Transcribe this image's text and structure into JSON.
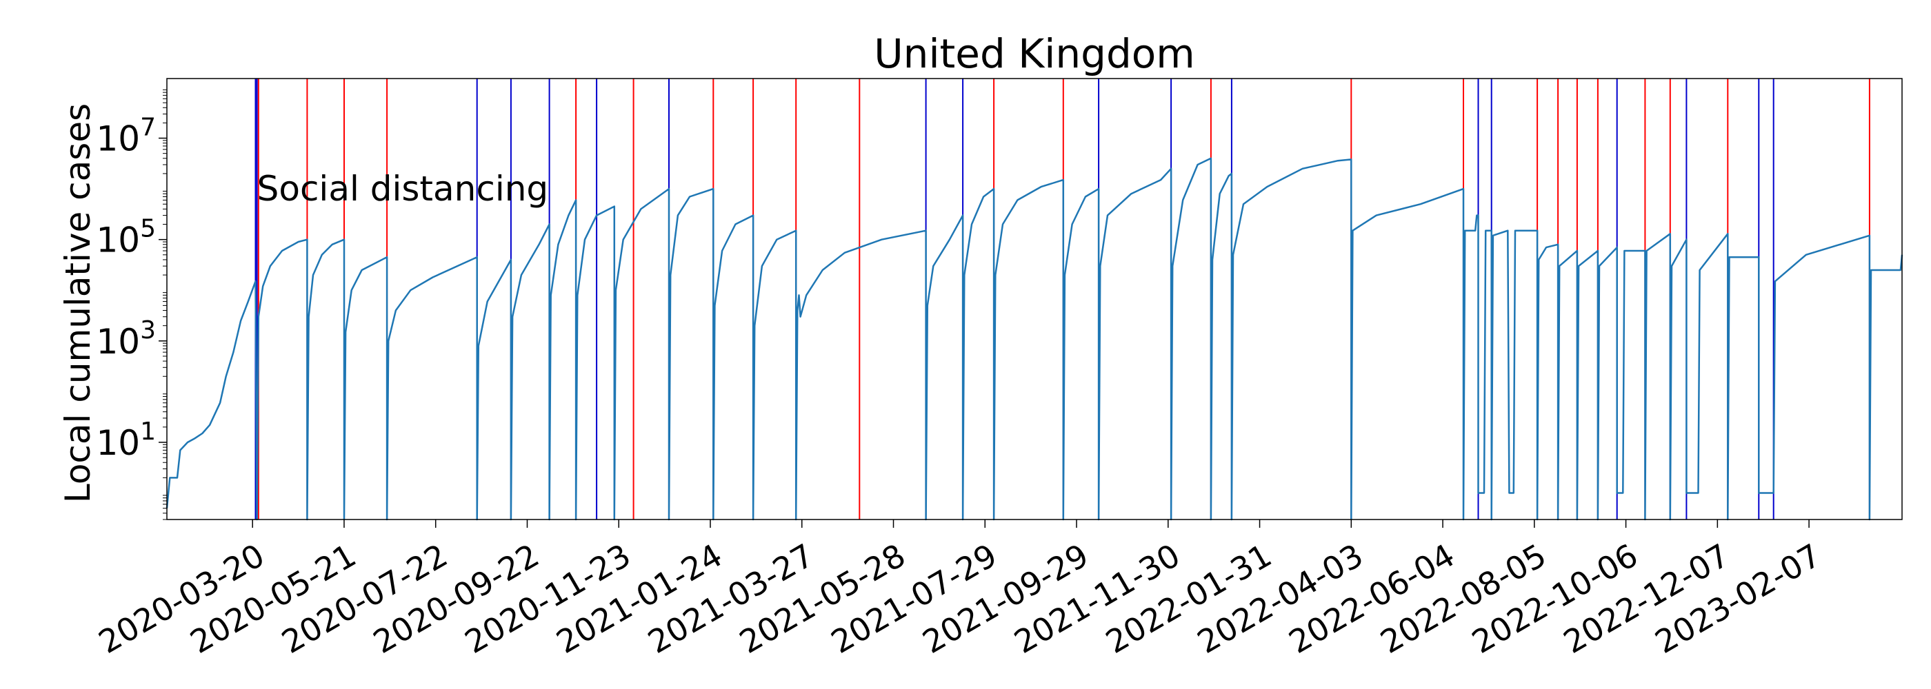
{
  "chart_data": {
    "type": "line",
    "title": "United Kingdom",
    "xlabel": "",
    "ylabel": "Local cumulative cases",
    "yscale": "log",
    "ylim": [
      0.3,
      150000000
    ],
    "xlim": [
      "2020-01-22",
      "2023-04-11"
    ],
    "grid": false,
    "legend": "none",
    "x_tick_labels": [
      "2020-03-20",
      "2020-05-21",
      "2020-07-22",
      "2020-09-22",
      "2020-11-23",
      "2021-01-24",
      "2021-03-27",
      "2021-05-28",
      "2021-07-29",
      "2021-09-29",
      "2021-11-30",
      "2022-01-31",
      "2022-04-03",
      "2022-06-04",
      "2022-08-05",
      "2022-10-06",
      "2022-12-07",
      "2023-02-07"
    ],
    "y_ticks": [
      {
        "value": 10,
        "base": "10",
        "exp": "1"
      },
      {
        "value": 1000,
        "base": "10",
        "exp": "3"
      },
      {
        "value": 100000,
        "base": "10",
        "exp": "5"
      },
      {
        "value": 10000000,
        "base": "10",
        "exp": "7"
      }
    ],
    "annotations": [
      {
        "text": "Social distancing",
        "x": "2020-03-23",
        "y": 1000000
      }
    ],
    "colors": {
      "line": "#1f77b4",
      "red_marker": "#ff0000",
      "blue_marker": "#0000cd"
    },
    "vlines_red": [
      "2020-03-24",
      "2020-04-26",
      "2020-05-21",
      "2020-06-19",
      "2020-10-25",
      "2020-12-03",
      "2021-01-26",
      "2021-02-22",
      "2021-03-23",
      "2021-05-05",
      "2021-08-04",
      "2021-09-20",
      "2021-12-29",
      "2022-04-03",
      "2022-06-18",
      "2022-08-07",
      "2022-08-21",
      "2022-09-03",
      "2022-09-17",
      "2022-10-19",
      "2022-11-05",
      "2022-12-14",
      "2023-03-20"
    ],
    "vlines_blue": [
      "2020-03-22",
      "2020-03-23",
      "2020-08-19",
      "2020-09-11",
      "2020-10-07",
      "2020-11-08",
      "2020-12-27",
      "2021-06-19",
      "2021-07-14",
      "2021-10-14",
      "2021-12-02",
      "2022-01-12",
      "2022-06-28",
      "2022-07-07",
      "2022-09-30",
      "2022-11-16",
      "2023-01-04",
      "2023-01-14"
    ],
    "series": [
      {
        "values": [
          [
            "2020-01-22",
            0.5
          ],
          [
            "2020-01-24",
            2
          ],
          [
            "2020-01-29",
            2
          ],
          [
            "2020-01-31",
            7
          ],
          [
            "2020-02-05",
            10
          ],
          [
            "2020-02-10",
            12
          ],
          [
            "2020-02-15",
            15
          ],
          [
            "2020-02-20",
            22
          ],
          [
            "2020-02-27",
            60
          ],
          [
            "2020-03-02",
            200
          ],
          [
            "2020-03-07",
            600
          ],
          [
            "2020-03-12",
            2500
          ],
          [
            "2020-03-17",
            6000
          ],
          [
            "2020-03-22",
            15000
          ],
          [
            "2020-03-23",
            0.3
          ],
          [
            "2020-03-24",
            3000
          ],
          [
            "2020-03-27",
            12000
          ],
          [
            "2020-04-01",
            30000
          ],
          [
            "2020-04-09",
            60000
          ],
          [
            "2020-04-20",
            90000
          ],
          [
            "2020-04-26",
            100000
          ],
          [
            "2020-04-26",
            0.3
          ],
          [
            "2020-04-27",
            3000
          ],
          [
            "2020-04-30",
            20000
          ],
          [
            "2020-05-06",
            50000
          ],
          [
            "2020-05-13",
            80000
          ],
          [
            "2020-05-21",
            100000
          ],
          [
            "2020-05-21",
            0.3
          ],
          [
            "2020-05-22",
            1500
          ],
          [
            "2020-05-26",
            10000
          ],
          [
            "2020-06-02",
            25000
          ],
          [
            "2020-06-19",
            45000
          ],
          [
            "2020-06-19",
            0.3
          ],
          [
            "2020-06-20",
            1000
          ],
          [
            "2020-06-25",
            4000
          ],
          [
            "2020-07-05",
            10000
          ],
          [
            "2020-07-20",
            18000
          ],
          [
            "2020-08-19",
            45000
          ],
          [
            "2020-08-19",
            0.3
          ],
          [
            "2020-08-20",
            800
          ],
          [
            "2020-08-26",
            6000
          ],
          [
            "2020-09-11",
            40000
          ],
          [
            "2020-09-11",
            0.3
          ],
          [
            "2020-09-12",
            3000
          ],
          [
            "2020-09-18",
            20000
          ],
          [
            "2020-09-30",
            80000
          ],
          [
            "2020-10-07",
            200000
          ],
          [
            "2020-10-07",
            0.3
          ],
          [
            "2020-10-08",
            8000
          ],
          [
            "2020-10-13",
            80000
          ],
          [
            "2020-10-20",
            300000
          ],
          [
            "2020-10-25",
            600000
          ],
          [
            "2020-10-25",
            0.3
          ],
          [
            "2020-10-26",
            8000
          ],
          [
            "2020-10-31",
            100000
          ],
          [
            "2020-11-08",
            300000
          ],
          [
            "2020-11-20",
            450000
          ],
          [
            "2020-11-20",
            0.3
          ],
          [
            "2020-11-21",
            10000
          ],
          [
            "2020-11-26",
            100000
          ],
          [
            "2020-12-08",
            400000
          ],
          [
            "2020-12-27",
            1000000
          ],
          [
            "2020-12-27",
            0.3
          ],
          [
            "2020-12-28",
            20000
          ],
          [
            "2021-01-02",
            300000
          ],
          [
            "2021-01-10",
            700000
          ],
          [
            "2021-01-26",
            1000000
          ],
          [
            "2021-01-26",
            0.3
          ],
          [
            "2021-01-27",
            5000
          ],
          [
            "2021-02-01",
            60000
          ],
          [
            "2021-02-10",
            200000
          ],
          [
            "2021-02-22",
            300000
          ],
          [
            "2021-02-22",
            0.3
          ],
          [
            "2021-02-23",
            2000
          ],
          [
            "2021-02-28",
            30000
          ],
          [
            "2021-03-10",
            100000
          ],
          [
            "2021-03-23",
            150000
          ],
          [
            "2021-03-23",
            0.3
          ],
          [
            "2021-03-24",
            4000
          ],
          [
            "2021-03-25",
            8000
          ],
          [
            "2021-03-26",
            3000
          ],
          [
            "2021-03-30",
            8000
          ],
          [
            "2021-04-10",
            25000
          ],
          [
            "2021-04-25",
            55000
          ],
          [
            "2021-05-20",
            100000
          ],
          [
            "2021-06-19",
            150000
          ],
          [
            "2021-06-19",
            0.3
          ],
          [
            "2021-06-20",
            5000
          ],
          [
            "2021-06-24",
            30000
          ],
          [
            "2021-07-05",
            100000
          ],
          [
            "2021-07-14",
            300000
          ],
          [
            "2021-07-14",
            0.3
          ],
          [
            "2021-07-15",
            20000
          ],
          [
            "2021-07-20",
            200000
          ],
          [
            "2021-07-28",
            700000
          ],
          [
            "2021-08-04",
            1000000
          ],
          [
            "2021-08-04",
            0.3
          ],
          [
            "2021-08-05",
            20000
          ],
          [
            "2021-08-10",
            200000
          ],
          [
            "2021-08-20",
            600000
          ],
          [
            "2021-09-05",
            1100000
          ],
          [
            "2021-09-20",
            1500000
          ],
          [
            "2021-09-20",
            0.3
          ],
          [
            "2021-09-21",
            20000
          ],
          [
            "2021-09-26",
            200000
          ],
          [
            "2021-10-05",
            700000
          ],
          [
            "2021-10-14",
            1000000
          ],
          [
            "2021-10-14",
            0.3
          ],
          [
            "2021-10-15",
            30000
          ],
          [
            "2021-10-20",
            300000
          ],
          [
            "2021-11-05",
            800000
          ],
          [
            "2021-11-25",
            1500000
          ],
          [
            "2021-12-02",
            2500000
          ],
          [
            "2021-12-02",
            0.3
          ],
          [
            "2021-12-03",
            30000
          ],
          [
            "2021-12-10",
            600000
          ],
          [
            "2021-12-20",
            3000000
          ],
          [
            "2021-12-29",
            4000000
          ],
          [
            "2021-12-29",
            0.3
          ],
          [
            "2021-12-30",
            40000
          ],
          [
            "2022-01-04",
            800000
          ],
          [
            "2022-01-10",
            1800000
          ],
          [
            "2022-01-12",
            2000000
          ],
          [
            "2022-01-12",
            0.3
          ],
          [
            "2022-01-13",
            50000
          ],
          [
            "2022-01-20",
            500000
          ],
          [
            "2022-02-05",
            1100000
          ],
          [
            "2022-03-01",
            2500000
          ],
          [
            "2022-03-25",
            3600000
          ],
          [
            "2022-04-03",
            3800000
          ],
          [
            "2022-04-03",
            0.3
          ],
          [
            "2022-04-04",
            150000
          ],
          [
            "2022-04-20",
            300000
          ],
          [
            "2022-05-20",
            500000
          ],
          [
            "2022-06-18",
            1000000
          ],
          [
            "2022-06-18",
            0.3
          ],
          [
            "2022-06-19",
            150000
          ],
          [
            "2022-06-26",
            150000
          ],
          [
            "2022-06-27",
            300000
          ],
          [
            "2022-06-28",
            300000
          ],
          [
            "2022-06-28",
            1
          ],
          [
            "2022-07-02",
            1
          ],
          [
            "2022-07-03",
            150000
          ],
          [
            "2022-07-07",
            150000
          ],
          [
            "2022-07-07",
            0.3
          ],
          [
            "2022-07-08",
            120000
          ],
          [
            "2022-07-18",
            150000
          ],
          [
            "2022-07-19",
            1
          ],
          [
            "2022-07-22",
            1
          ],
          [
            "2022-07-23",
            150000
          ],
          [
            "2022-08-07",
            150000
          ],
          [
            "2022-08-07",
            0.3
          ],
          [
            "2022-08-08",
            40000
          ],
          [
            "2022-08-13",
            70000
          ],
          [
            "2022-08-21",
            80000
          ],
          [
            "2022-08-21",
            0.3
          ],
          [
            "2022-08-22",
            30000
          ],
          [
            "2022-09-03",
            60000
          ],
          [
            "2022-09-03",
            0.3
          ],
          [
            "2022-09-04",
            30000
          ],
          [
            "2022-09-17",
            60000
          ],
          [
            "2022-09-17",
            0.3
          ],
          [
            "2022-09-18",
            30000
          ],
          [
            "2022-09-30",
            70000
          ],
          [
            "2022-09-30",
            1
          ],
          [
            "2022-10-04",
            1
          ],
          [
            "2022-10-05",
            60000
          ],
          [
            "2022-10-19",
            60000
          ],
          [
            "2022-10-19",
            0.3
          ],
          [
            "2022-10-20",
            60000
          ],
          [
            "2022-11-05",
            130000
          ],
          [
            "2022-11-05",
            0.3
          ],
          [
            "2022-11-06",
            30000
          ],
          [
            "2022-11-16",
            100000
          ],
          [
            "2022-11-16",
            1
          ],
          [
            "2022-11-24",
            1
          ],
          [
            "2022-11-25",
            25000
          ],
          [
            "2022-12-14",
            130000
          ],
          [
            "2022-12-14",
            0.3
          ],
          [
            "2022-12-15",
            45000
          ],
          [
            "2023-01-04",
            45000
          ],
          [
            "2023-01-04",
            1
          ],
          [
            "2023-01-14",
            1
          ],
          [
            "2023-01-15",
            15000
          ],
          [
            "2023-02-05",
            50000
          ],
          [
            "2023-03-20",
            120000
          ],
          [
            "2023-03-20",
            0.3
          ],
          [
            "2023-03-21",
            25000
          ],
          [
            "2023-04-10",
            25000
          ],
          [
            "2023-04-11",
            50000
          ]
        ]
      }
    ]
  }
}
